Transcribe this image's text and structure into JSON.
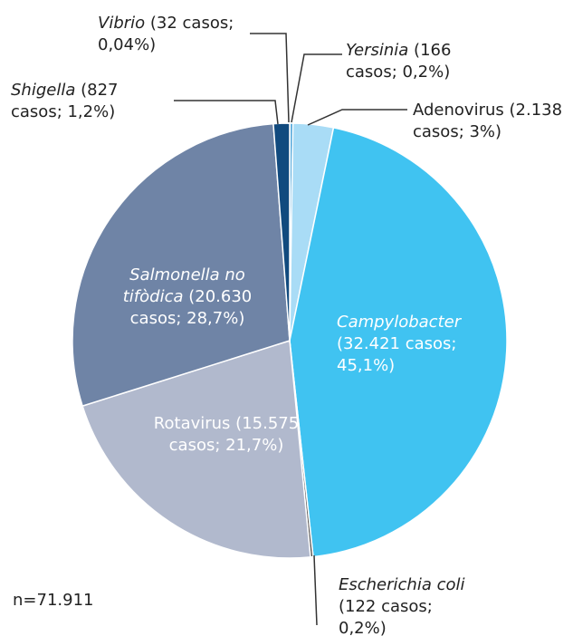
{
  "chart_data": {
    "type": "pie",
    "categories": [
      "Vibrio",
      "Yersinia",
      "Adenovirus",
      "Campylobacter",
      "Escherichia coli",
      "Rotavirus",
      "Salmonella no tifòdica",
      "Shigella"
    ],
    "italic": [
      true,
      true,
      false,
      true,
      true,
      false,
      true,
      true
    ],
    "values": [
      0.04,
      0.2,
      3,
      45.1,
      0.2,
      21.7,
      28.7,
      1.2
    ],
    "value_labels": [
      "(32 casos; 0,04%)",
      "(166 casos; 0,2%)",
      "(2.138 casos; 3%)",
      "(32.421 casos; 45,1%)",
      "(122 casos; 0,2%)",
      "(15.575 casos; 21,7%)",
      "(20.630 casos; 28,7%)",
      "(827 casos; 1,2%)"
    ],
    "colors": [
      "#0b3a6e",
      "#1f8ed0",
      "#a9dcf6",
      "#40c3f1",
      "#555555",
      "#b1b9cd",
      "#6f84a6",
      "#114a7e"
    ],
    "note": "n=71.911"
  }
}
